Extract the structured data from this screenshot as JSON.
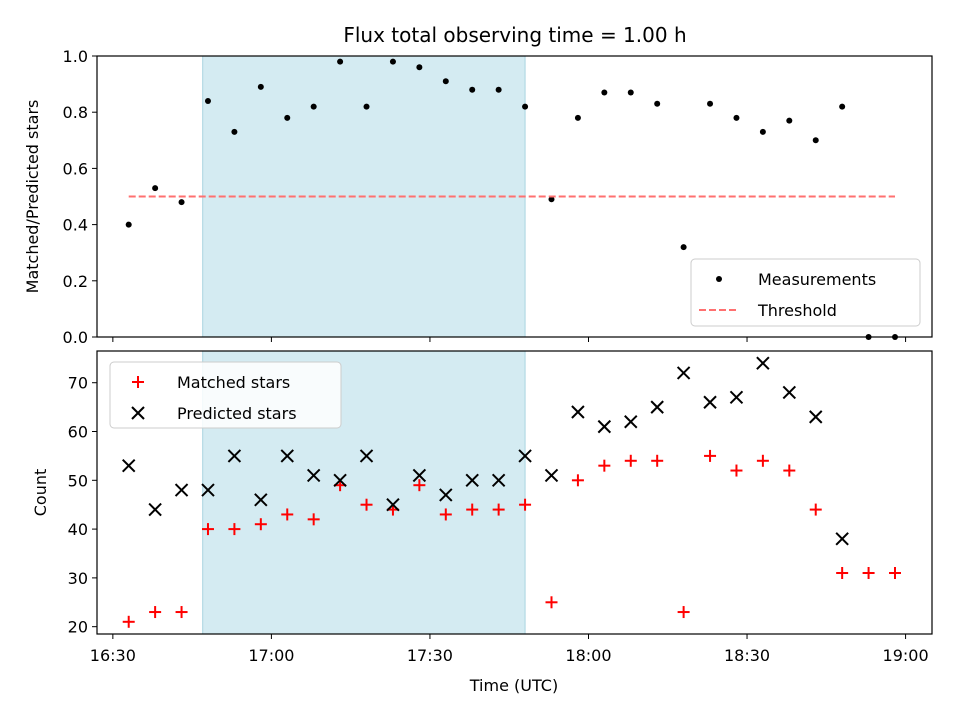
{
  "chart_data": [
    {
      "type": "scatter",
      "title": "Flux total observing time = 1.00 h",
      "xlabel": "",
      "ylabel": "Matched/Predicted stars",
      "ylim": [
        0,
        1.0
      ],
      "yticks": [
        "0.0",
        "0.2",
        "0.4",
        "0.6",
        "0.8",
        "1.0"
      ],
      "xlim": [
        "16:27",
        "19:05"
      ],
      "shaded_region": {
        "x_start": "16:47",
        "x_end": "17:48",
        "color": "#d4ebf2"
      },
      "legend_position": "lower-right",
      "series": [
        {
          "name": "Measurements",
          "marker": "dot",
          "color": "#000000",
          "x": [
            "16:33",
            "16:38",
            "16:43",
            "16:48",
            "16:53",
            "16:58",
            "17:03",
            "17:08",
            "17:13",
            "17:18",
            "17:23",
            "17:28",
            "17:33",
            "17:38",
            "17:43",
            "17:48",
            "17:53",
            "17:58",
            "18:03",
            "18:08",
            "18:13",
            "18:18",
            "18:23",
            "18:28",
            "18:33",
            "18:38",
            "18:43",
            "18:48",
            "18:53",
            "18:58"
          ],
          "y": [
            0.4,
            0.53,
            0.48,
            0.84,
            0.73,
            0.89,
            0.78,
            0.82,
            0.98,
            0.82,
            0.98,
            0.96,
            0.91,
            0.88,
            0.88,
            0.82,
            0.49,
            0.78,
            0.87,
            0.87,
            0.83,
            0.32,
            0.83,
            0.78,
            0.73,
            0.77,
            0.7,
            0.82,
            0.0,
            0.0
          ]
        },
        {
          "name": "Threshold",
          "line": "dashed",
          "color": "#ff7070",
          "x": [
            "16:33",
            "18:58"
          ],
          "y": [
            0.5,
            0.5
          ]
        }
      ]
    },
    {
      "type": "scatter",
      "title": "",
      "xlabel": "Time (UTC)",
      "ylabel": "Count",
      "ylim": [
        18.5,
        76.5
      ],
      "yticks": [
        "20",
        "30",
        "40",
        "50",
        "60",
        "70"
      ],
      "xticks": [
        "16:30",
        "17:00",
        "17:30",
        "18:00",
        "18:30",
        "19:00"
      ],
      "xlim": [
        "16:27",
        "19:05"
      ],
      "shaded_region": {
        "x_start": "16:47",
        "x_end": "17:48",
        "color": "#d4ebf2"
      },
      "legend_position": "upper-left",
      "series": [
        {
          "name": "Matched stars",
          "marker": "plus",
          "color": "#ff0000",
          "x": [
            "16:33",
            "16:38",
            "16:43",
            "16:48",
            "16:53",
            "16:58",
            "17:03",
            "17:08",
            "17:13",
            "17:18",
            "17:23",
            "17:28",
            "17:33",
            "17:38",
            "17:43",
            "17:48",
            "17:53",
            "17:58",
            "18:03",
            "18:08",
            "18:13",
            "18:18",
            "18:23",
            "18:28",
            "18:33",
            "18:38",
            "18:43",
            "18:48",
            "18:53",
            "18:58"
          ],
          "y": [
            21,
            23,
            23,
            40,
            40,
            41,
            43,
            42,
            49,
            45,
            44,
            49,
            43,
            44,
            44,
            45,
            25,
            50,
            53,
            54,
            54,
            23,
            55,
            52,
            54,
            52,
            44,
            31,
            31,
            31
          ]
        },
        {
          "name": "Predicted stars",
          "marker": "x",
          "color": "#000000",
          "x": [
            "16:33",
            "16:38",
            "16:43",
            "16:48",
            "16:53",
            "16:58",
            "17:03",
            "17:08",
            "17:13",
            "17:18",
            "17:23",
            "17:28",
            "17:33",
            "17:38",
            "17:43",
            "17:48",
            "17:53",
            "17:58",
            "18:03",
            "18:08",
            "18:13",
            "18:18",
            "18:23",
            "18:28",
            "18:33",
            "18:38",
            "18:43",
            "18:48"
          ],
          "y": [
            53,
            44,
            48,
            48,
            55,
            46,
            55,
            51,
            50,
            55,
            45,
            51,
            47,
            50,
            50,
            55,
            51,
            64,
            61,
            62,
            65,
            72,
            66,
            67,
            74,
            68,
            63,
            38
          ]
        }
      ]
    }
  ]
}
